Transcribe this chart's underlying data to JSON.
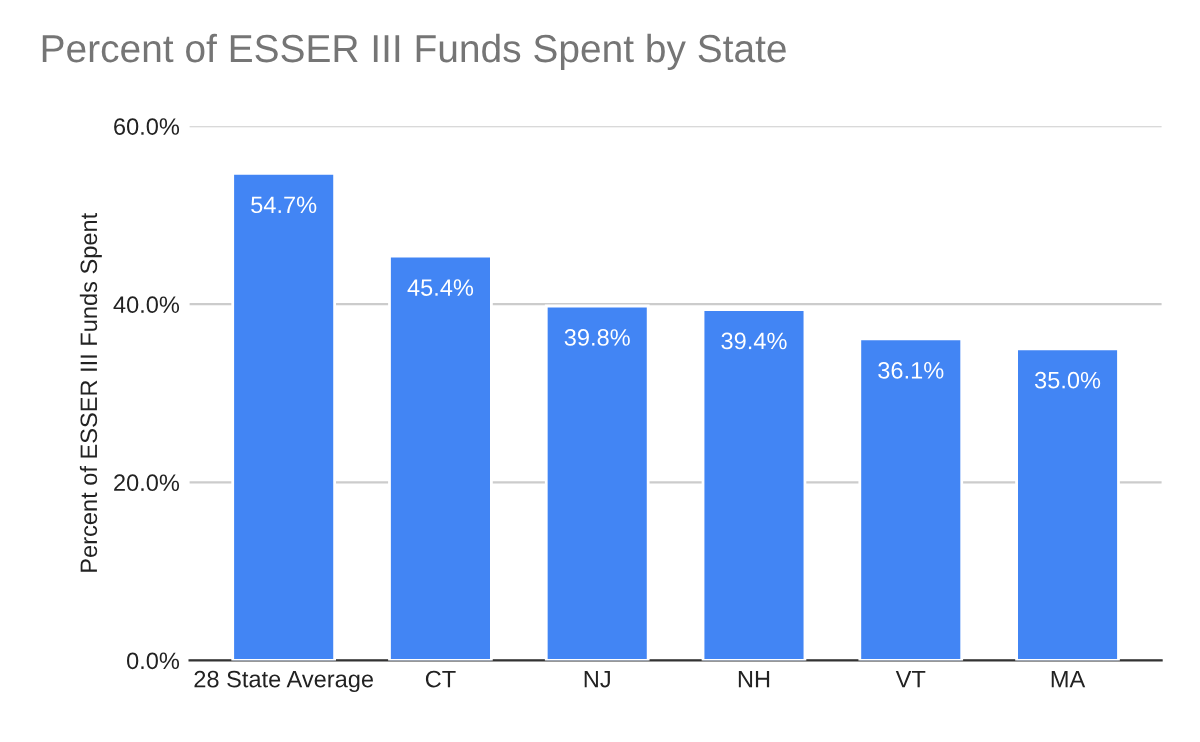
{
  "chart_data": {
    "type": "bar",
    "title": "Percent of ESSER III Funds Spent by State",
    "ylabel": "Percent of ESSER III Funds Spent",
    "categories": [
      "28 State Average",
      "CT",
      "NJ",
      "NH",
      "VT",
      "MA"
    ],
    "values": [
      54.7,
      45.4,
      39.8,
      39.4,
      36.1,
      35.0
    ],
    "value_labels": [
      "54.7%",
      "45.4%",
      "39.8%",
      "39.4%",
      "36.1%",
      "35.0%"
    ],
    "color": "#4285f4",
    "ylim": [
      0,
      60
    ],
    "yticks": [
      {
        "value": 0,
        "label": "0.0%"
      },
      {
        "value": 20,
        "label": "20.0%"
      },
      {
        "value": 40,
        "label": "40.0%"
      },
      {
        "value": 60,
        "label": "60.0%"
      }
    ],
    "grid": "y"
  }
}
